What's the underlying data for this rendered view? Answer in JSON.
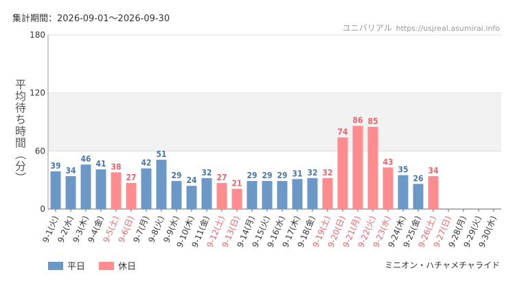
{
  "header": {
    "period": "集計期間：2026-09-01～2026-09-30",
    "brand": "ユニバリアル",
    "url": "https://usjreal.asumirai.info"
  },
  "footer": {
    "ride_name": "ミニオン・ハチャメチャライド"
  },
  "colors": {
    "weekday": "#6b98c7",
    "holiday": "#ff8c8e",
    "weekday_label": "#4a77a8",
    "holiday_label": "#e8676c"
  },
  "chart_data": {
    "type": "bar",
    "ylabel": "平均待ち時間（分）",
    "ylim": [
      0,
      180
    ],
    "yticks": [
      0,
      60,
      120,
      180
    ],
    "band": [
      60,
      120
    ],
    "legend": [
      {
        "name": "平日",
        "kind": "weekday"
      },
      {
        "name": "休日",
        "kind": "holiday"
      }
    ],
    "categories": [
      "9-1(火)",
      "9-2(水)",
      "9-3(木)",
      "9-4(金)",
      "9-5(土)",
      "9-6(日)",
      "9-7(月)",
      "9-8(火)",
      "9-9(水)",
      "9-10(木)",
      "9-11(金)",
      "9-12(土)",
      "9-13(日)",
      "9-14(月)",
      "9-15(火)",
      "9-16(水)",
      "9-17(木)",
      "9-18(金)",
      "9-19(土)",
      "9-20(日)",
      "9-21(月)",
      "9-22(火)",
      "9-23(水)",
      "9-24(木)",
      "9-25(金)",
      "9-26(土)",
      "9-27(日)",
      "9-28(月)",
      "9-29(火)",
      "9-30(水)"
    ],
    "holiday": [
      false,
      false,
      false,
      false,
      true,
      true,
      false,
      false,
      false,
      false,
      false,
      true,
      true,
      false,
      false,
      false,
      false,
      false,
      true,
      true,
      true,
      true,
      true,
      false,
      false,
      true,
      true,
      false,
      false,
      false
    ],
    "values": [
      39,
      34,
      46,
      41,
      38,
      27,
      42,
      51,
      29,
      24,
      32,
      27,
      21,
      29,
      29,
      29,
      31,
      32,
      32,
      74,
      86,
      85,
      43,
      35,
      26,
      34,
      null,
      null,
      null,
      null
    ]
  }
}
